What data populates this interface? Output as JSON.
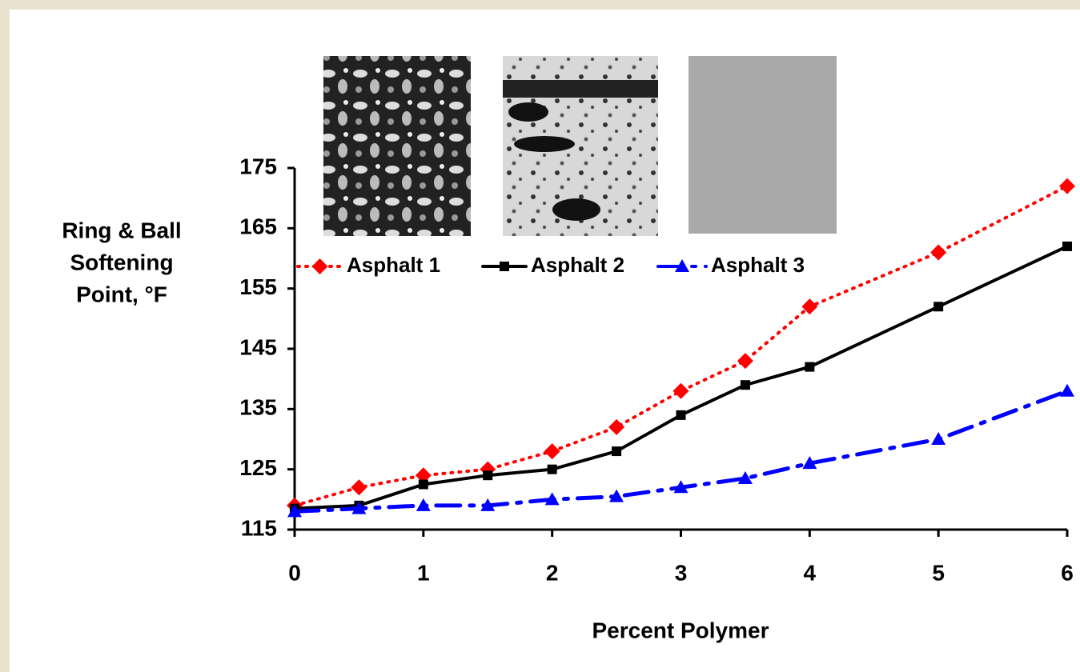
{
  "chart_data": {
    "type": "line",
    "xlabel": "Percent Polymer",
    "ylabel": [
      "Ring & Ball",
      "Softening",
      "Point, °F"
    ],
    "x": [
      0,
      0.5,
      1,
      1.5,
      2,
      2.5,
      3,
      3.5,
      4,
      5,
      6
    ],
    "series": [
      {
        "name": "Asphalt 1",
        "color": "#ff0000",
        "marker": "diamond",
        "dash": "dotted",
        "values": [
          119,
          122,
          124,
          125,
          128,
          132,
          138,
          143,
          152,
          161,
          172
        ]
      },
      {
        "name": "Asphalt 2",
        "color": "#000000",
        "marker": "square",
        "dash": "solid",
        "values": [
          118.5,
          119,
          122.5,
          124,
          125,
          128,
          134,
          139,
          142,
          152,
          162
        ]
      },
      {
        "name": "Asphalt 3",
        "color": "#0000ff",
        "marker": "triangle",
        "dash": "dashdot",
        "values": [
          118,
          118.5,
          119,
          119,
          120,
          120.5,
          122,
          123.5,
          126,
          130,
          138
        ]
      }
    ],
    "xlim": [
      0,
      6
    ],
    "xticks": [
      0,
      1,
      2,
      3,
      4,
      5,
      6
    ],
    "ylim": [
      115,
      175
    ],
    "yticks": [
      115,
      125,
      135,
      145,
      155,
      165,
      175
    ],
    "grid": false
  }
}
